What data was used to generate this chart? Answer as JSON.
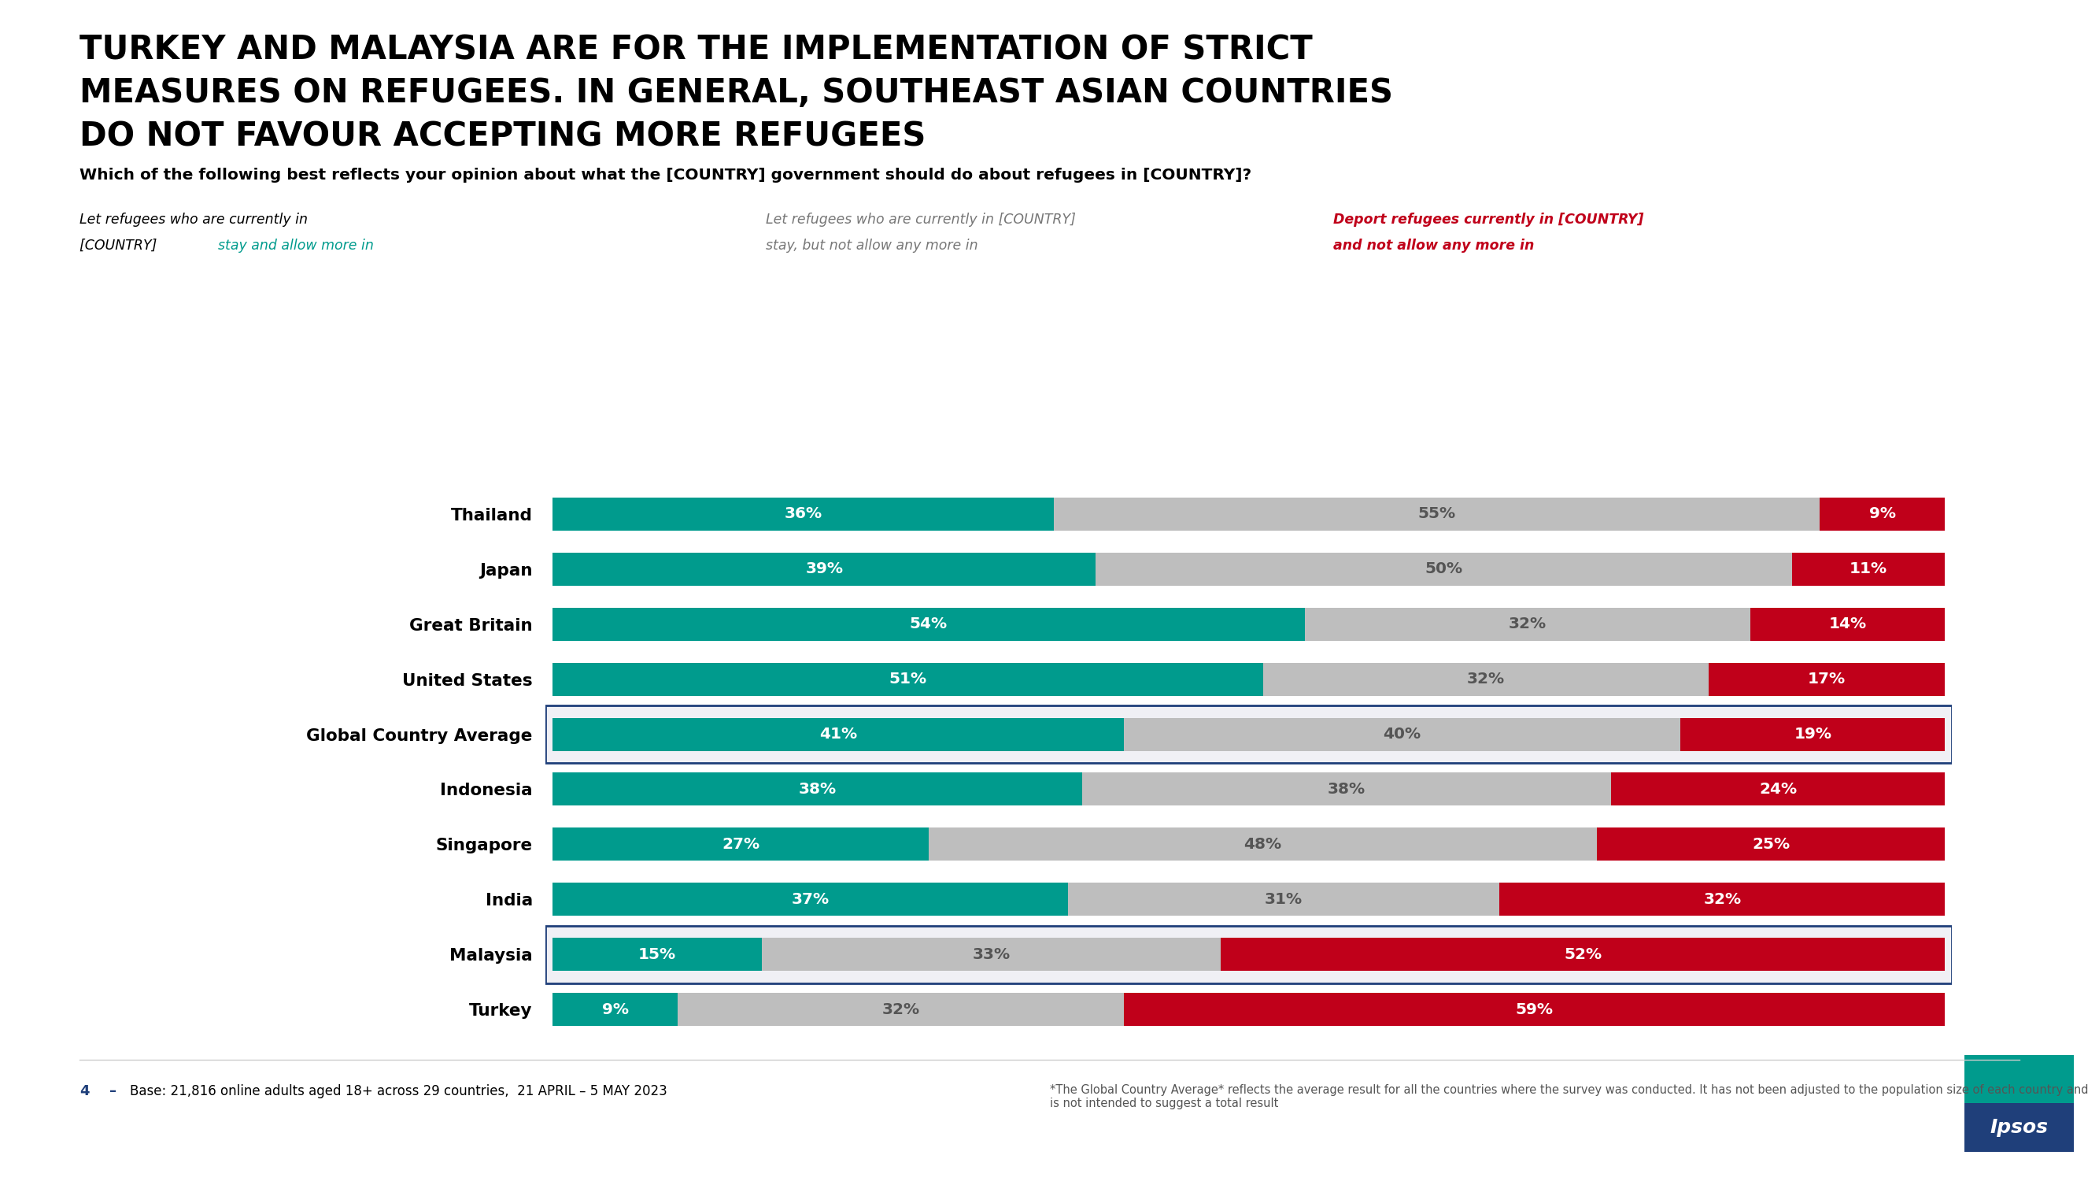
{
  "title_line1": "TURKEY AND MALAYSIA ARE FOR THE IMPLEMENTATION OF STRICT",
  "title_line2": "MEASURES ON REFUGEES. IN GENERAL, SOUTHEAST ASIAN COUNTRIES",
  "title_line3": "DO NOT FAVOUR ACCEPTING MORE REFUGEES",
  "question": "Which of the following best reflects your opinion about what the [COUNTRY] government should do about refugees in [COUNTRY]?",
  "legend1_line1": "Let refugees who are currently in",
  "legend1_line2_black": "[COUNTRY] ",
  "legend1_line2_teal": "stay and allow more in",
  "legend2_line1": "Let refugees who are currently in [COUNTRY]",
  "legend2_line2": "stay, but not allow any more in",
  "legend3_line1": "Deport refugees currently in [COUNTRY]",
  "legend3_line2": "and not allow any more in",
  "countries": [
    "Thailand",
    "Japan",
    "Great Britain",
    "United States",
    "Global Country Average",
    "Indonesia",
    "Singapore",
    "India",
    "Malaysia",
    "Turkey"
  ],
  "values_teal": [
    36,
    39,
    54,
    51,
    41,
    38,
    27,
    37,
    15,
    9
  ],
  "values_gray": [
    55,
    50,
    32,
    32,
    40,
    38,
    48,
    31,
    33,
    32
  ],
  "values_red": [
    9,
    11,
    14,
    17,
    19,
    24,
    25,
    32,
    52,
    59
  ],
  "color_teal": "#009B8D",
  "color_gray": "#BEBEBE",
  "color_red": "#C0001A",
  "highlighted_rows": [
    "Global Country Average",
    "Malaysia"
  ],
  "footer_number": "4",
  "footer_left": "Base: 21,816 online adults aged 18+ across 29 countries,  21 APRIL – 5 MAY 2023",
  "footer_right": "*The Global Country Average* reflects the average result for all the countries where the survey was conducted. It has not been adjusted to the population size of each country and is not intended to suggest a total result",
  "background_color": "#FFFFFF",
  "bar_height": 0.6,
  "highlight_box_color": "#1F3F7A",
  "highlight_bg_color": "#F0F0F5"
}
